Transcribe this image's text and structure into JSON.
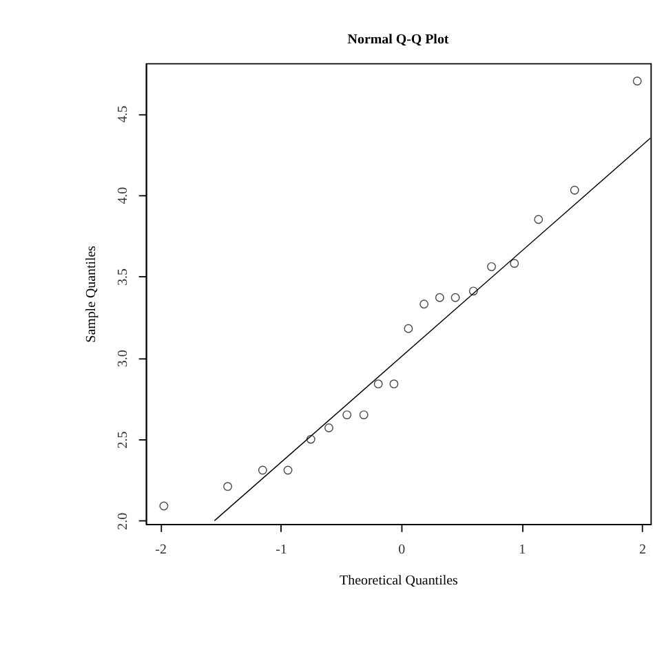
{
  "chart_data": {
    "type": "scatter",
    "title": "Normal Q-Q Plot",
    "xlabel": "Theoretical Quantiles",
    "ylabel": "Sample Quantiles",
    "xlim": [
      -2.12,
      2.07
    ],
    "ylim": [
      1.98,
      4.81
    ],
    "xticks": [
      -2,
      -1,
      0,
      1,
      2
    ],
    "yticks": [
      {
        "value": 2,
        "label": "2.0"
      },
      2.5,
      {
        "value": 3,
        "label": "3.0"
      },
      3.5,
      {
        "value": 4,
        "label": "4.0"
      },
      4.5
    ],
    "grid": false,
    "series": [
      {
        "color": "#000000",
        "marker": "circle",
        "x": [
          -1.97,
          -1.44,
          -1.15,
          -0.94,
          -0.75,
          -0.6,
          -0.45,
          -0.31,
          -0.19,
          -0.06,
          0.06,
          0.19,
          0.32,
          0.45,
          0.6,
          0.75,
          0.94,
          1.14,
          1.44,
          1.96
        ],
        "values": [
          2.09,
          2.21,
          2.31,
          2.31,
          2.5,
          2.57,
          2.65,
          2.65,
          2.84,
          2.84,
          3.18,
          3.33,
          3.37,
          3.37,
          3.41,
          3.56,
          3.58,
          3.85,
          4.03,
          4.7
        ]
      },
      {
        "type": "line",
        "color": "#000000",
        "line_style": "solid",
        "x": [
          -1.55,
          2.07
        ],
        "values": [
          2.0,
          4.35
        ]
      }
    ]
  }
}
